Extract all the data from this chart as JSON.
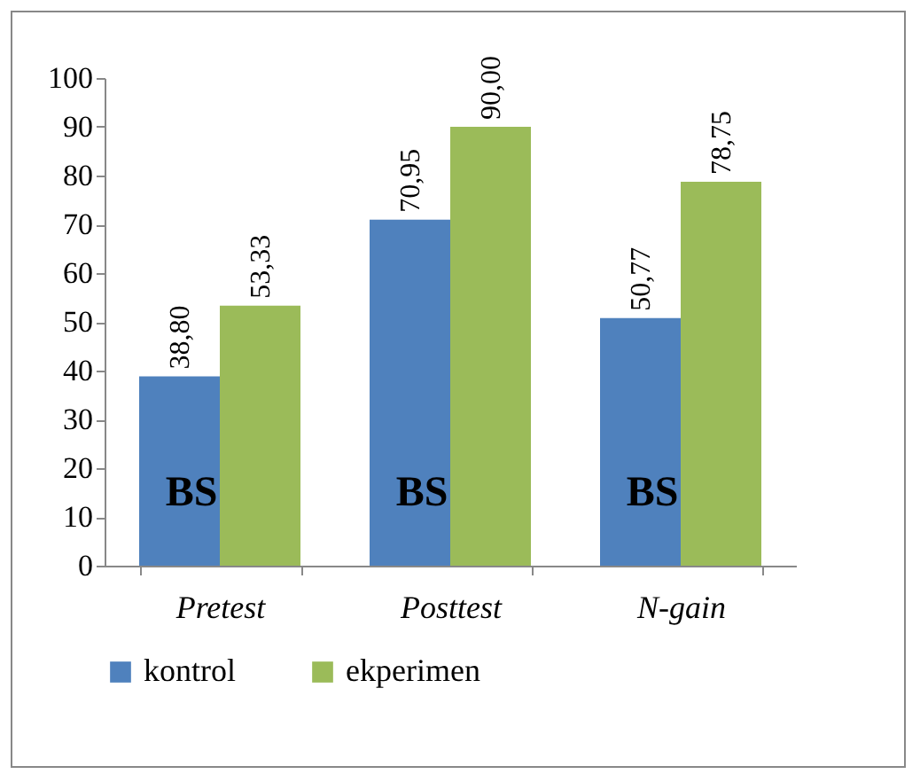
{
  "chart_data": {
    "type": "bar",
    "categories": [
      "Pretest",
      "Posttest",
      "N-gain"
    ],
    "series": [
      {
        "name": "kontrol",
        "color": "#4f81bd",
        "values": [
          38.8,
          70.95,
          50.77
        ],
        "value_labels": [
          "38,80",
          "70,95",
          "50,77"
        ]
      },
      {
        "name": "ekperimen",
        "color": "#9bbb59",
        "values": [
          53.33,
          90.0,
          78.75
        ],
        "value_labels": [
          "53,33",
          "90,00",
          "78,75"
        ]
      }
    ],
    "ylim": [
      0,
      100
    ],
    "yticks": [
      0,
      10,
      20,
      30,
      40,
      50,
      60,
      70,
      80,
      90,
      100
    ],
    "grid": false,
    "legend": "bottom",
    "annotations": [
      {
        "text": "BS",
        "x": "Pretest",
        "y": 15
      },
      {
        "text": "BS",
        "x": "Posttest",
        "y": 15
      },
      {
        "text": "BS",
        "x": "N-gain",
        "y": 15
      }
    ]
  }
}
